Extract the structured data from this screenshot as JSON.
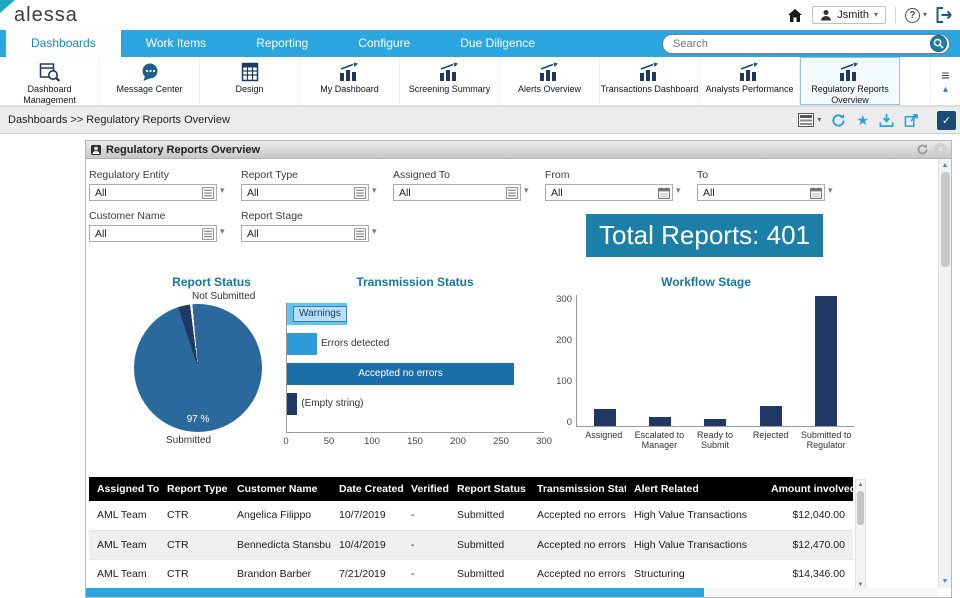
{
  "colors": {
    "accent": "#1b7fa6",
    "nav_blue": "#2ba6df",
    "navy": "#1f3864",
    "title_teal": "#16789e"
  },
  "header": {
    "logo_text": "alessa",
    "user_name": "Jsmith"
  },
  "nav": {
    "tabs": [
      {
        "label": "Dashboards",
        "active": true
      },
      {
        "label": "Work Items",
        "active": false
      },
      {
        "label": "Reporting",
        "active": false
      },
      {
        "label": "Configure",
        "active": false
      },
      {
        "label": "Due Diligence",
        "active": false
      }
    ],
    "search": {
      "placeholder": "Search",
      "value": ""
    }
  },
  "toolbar": {
    "items": [
      {
        "label": "Dashboard Management",
        "icon": "dashboard-search-icon",
        "selected": false
      },
      {
        "label": "Message Center",
        "icon": "message-icon",
        "selected": false
      },
      {
        "label": "Design",
        "icon": "design-grid-icon",
        "selected": false
      },
      {
        "label": "My Dashboard",
        "icon": "chart-icon",
        "selected": false
      },
      {
        "label": "Screening Summary",
        "icon": "chart-icon",
        "selected": false
      },
      {
        "label": "Alerts Overview",
        "icon": "chart-icon",
        "selected": false
      },
      {
        "label": "Transactions Dashboard",
        "icon": "chart-icon",
        "selected": false
      },
      {
        "label": "Analysts Performance",
        "icon": "chart-icon",
        "selected": false
      },
      {
        "label": "Regulatory Reports Overview",
        "icon": "chart-icon",
        "selected": true
      }
    ]
  },
  "breadcrumb": {
    "text": "Dashboards >> Regulatory Reports Overview"
  },
  "panel": {
    "title": "Regulatory Reports Overview"
  },
  "filters": {
    "row1": [
      {
        "label": "Regulatory Entity",
        "value": "All",
        "picker": "list"
      },
      {
        "label": "Report Type",
        "value": "All",
        "picker": "list"
      },
      {
        "label": "Assigned To",
        "value": "All",
        "picker": "list"
      },
      {
        "label": "From",
        "value": "All",
        "picker": "calendar"
      },
      {
        "label": "To",
        "value": "All",
        "picker": "calendar"
      }
    ],
    "row2": [
      {
        "label": "Customer Name",
        "value": "All",
        "picker": "list"
      },
      {
        "label": "Report Stage",
        "value": "All",
        "picker": "list"
      }
    ]
  },
  "total_reports": {
    "text": "Total Reports: 401",
    "value": 401
  },
  "chart_data": [
    {
      "type": "pie",
      "title": "Report Status",
      "slices": [
        {
          "label": "Not Submitted",
          "value": 3,
          "color": "#1f3864"
        },
        {
          "label": "",
          "value": 0.6,
          "color": "#ffffff"
        },
        {
          "label": "Submitted",
          "value": 96.4,
          "color": "#2b699c"
        }
      ],
      "start_angle": -18,
      "callout_top": "Not Submitted",
      "callout_pct": "97 %",
      "callout_bottom": "Submitted"
    },
    {
      "type": "bar",
      "orientation": "horizontal",
      "title": "Transmission Status",
      "categories": [
        "Warnings",
        "Errors detected",
        "Accepted no errors",
        "(Empty string)"
      ],
      "values": [
        70,
        35,
        265,
        12
      ],
      "colors": [
        "#5fc4f0",
        "#2f9ad8",
        "#1b6fa8",
        "#1f3864"
      ],
      "label_pos": [
        "inside-boxed",
        "outside",
        "inside-center",
        "outside"
      ],
      "label_colors": [
        "#1f3864",
        "#333333",
        "#ffffff",
        "#333333"
      ],
      "xlim": [
        0,
        300
      ],
      "xticks": [
        0,
        50,
        100,
        150,
        200,
        250,
        300
      ]
    },
    {
      "type": "bar",
      "orientation": "vertical",
      "title": "Workflow Stage",
      "categories": [
        "Assigned",
        "Escalated to Manager",
        "Ready to Submit",
        "Rejected",
        "Submitted to Regulator"
      ],
      "values": [
        40,
        20,
        15,
        45,
        298
      ],
      "color": "#1f3864",
      "ylim": [
        0,
        300
      ],
      "yticks": [
        0,
        100,
        200,
        300
      ]
    }
  ],
  "table": {
    "columns": [
      "Assigned To",
      "Report Type",
      "Customer Name",
      "Date Created",
      "Verified",
      "Report Status",
      "Transmission Status",
      "Alert Related",
      "Amount involved in"
    ],
    "rows": [
      [
        "AML Team",
        "CTR",
        "Angelica Filippo",
        "10/7/2019",
        "-",
        "Submitted",
        "Accepted no errors",
        "High Value Transactions",
        "$12,040.00"
      ],
      [
        "AML Team",
        "CTR",
        "Bennedicta Stansbury",
        "10/4/2019",
        "-",
        "Submitted",
        "Accepted no errors",
        "High Value Transactions",
        "$12,470.00"
      ],
      [
        "AML Team",
        "CTR",
        "Brandon Barber",
        "7/21/2019",
        "-",
        "Submitted",
        "Accepted no errors",
        "Structuring",
        "$14,346.00"
      ]
    ]
  },
  "icons": {
    "chevron_down": "▾",
    "chevron_up": "▴",
    "menu": "≡",
    "arrow_up": "▲",
    "arrow_down": "▼",
    "help": "?",
    "close": "×",
    "check": "✓"
  }
}
